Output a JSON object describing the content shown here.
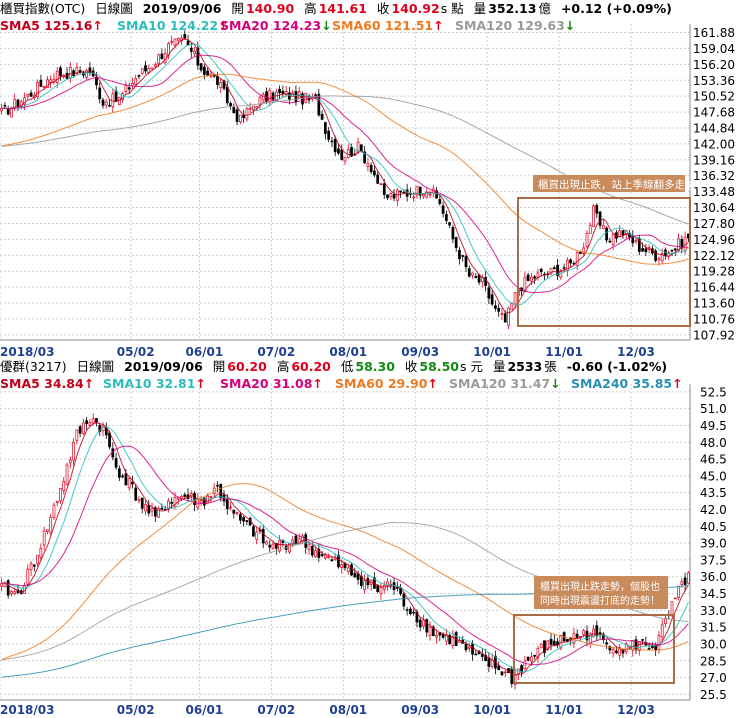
{
  "top": {
    "header": {
      "name": "櫃買指數(OTC)",
      "period": "日線圖",
      "date": "2019/09/06",
      "open_label": "開",
      "open": "140.90",
      "high_label": "高",
      "high": "141.61",
      "close_label": "收",
      "close": "140.92",
      "unit": "s 點",
      "volume_label": "量",
      "volume": "352.13",
      "volume_unit": "億",
      "change": "+0.12 (+0.09%)"
    },
    "sma": [
      {
        "label": "SMA5",
        "value": "125.16",
        "dir": "up",
        "color": "#c0001a"
      },
      {
        "label": "SMA10",
        "value": "124.22",
        "dir": "up",
        "color": "#2bbdbd"
      },
      {
        "label": "SMA20",
        "value": "124.23",
        "dir": "down",
        "color": "#d4007a"
      },
      {
        "label": "SMA60",
        "value": "121.51",
        "dir": "up",
        "color": "#ee7a1f"
      },
      {
        "label": "SMA120",
        "value": "129.63",
        "dir": "down",
        "color": "#9a9a9a"
      }
    ],
    "annotation": "櫃買出現止跌，站上季線翻多走勢！"
  },
  "bottom": {
    "header": {
      "name": "優群(3217)",
      "period": "日線圖",
      "date": "2019/09/06",
      "open_label": "開",
      "open": "60.20",
      "high_label": "高",
      "high": "60.20",
      "low_label": "低",
      "low": "58.30",
      "close_label": "收",
      "close": "58.50",
      "unit": "s 元",
      "volume_label": "量",
      "volume": "2533",
      "volume_unit": "張",
      "change": "-0.60 (-1.02%)"
    },
    "sma": [
      {
        "label": "SMA5",
        "value": "34.84",
        "dir": "up",
        "color": "#c0001a"
      },
      {
        "label": "SMA10",
        "value": "32.81",
        "dir": "up",
        "color": "#2bbdbd"
      },
      {
        "label": "SMA20",
        "value": "31.08",
        "dir": "up",
        "color": "#d4007a"
      },
      {
        "label": "SMA60",
        "value": "29.90",
        "dir": "up",
        "color": "#ee7a1f"
      },
      {
        "label": "SMA120",
        "value": "31.47",
        "dir": "down",
        "color": "#9a9a9a"
      },
      {
        "label": "SMA240",
        "value": "35.85",
        "dir": "up",
        "color": "#2a8fb0"
      }
    ],
    "annotation_lines": [
      "櫃買出現止跌走勢，個股也",
      "同時出現震盪打底的走勢！"
    ]
  },
  "colors": {
    "up_candle": "#e0001b",
    "down_candle": "#000000",
    "annotation_box": "#a86d45",
    "annotation_fill": "#c98a5c",
    "grid": "#c8c8c8",
    "axis_date": "#1f3f8f"
  },
  "chart_data": [
    {
      "type": "candlestick",
      "title": "櫃買指數(OTC) 日線圖",
      "x_ticks": [
        "2018/03",
        "05/02",
        "06/01",
        "07/02",
        "08/01",
        "09/03",
        "10/01",
        "11/01",
        "12/03"
      ],
      "y_ticks": [
        "161.88",
        "159.04",
        "156.20",
        "153.36",
        "150.52",
        "147.68",
        "144.84",
        "142.00",
        "139.16",
        "136.32",
        "133.48",
        "130.64",
        "127.80",
        "124.96",
        "122.12",
        "119.28",
        "116.44",
        "113.60",
        "110.76",
        "107.92"
      ],
      "ylim": [
        107.0,
        163.4
      ],
      "anchors_close": [
        [
          0,
          147.5
        ],
        [
          8,
          150.6
        ],
        [
          16,
          154.4
        ],
        [
          22,
          154.9
        ],
        [
          27,
          155.0
        ],
        [
          31,
          149.6
        ],
        [
          36,
          150.0
        ],
        [
          41,
          153.8
        ],
        [
          46,
          156.2
        ],
        [
          51,
          159.4
        ],
        [
          56,
          160.4
        ],
        [
          61,
          155.6
        ],
        [
          66,
          153.2
        ],
        [
          70,
          148.6
        ],
        [
          73,
          146.2
        ],
        [
          78,
          149.6
        ],
        [
          84,
          150.9
        ],
        [
          90,
          150.4
        ],
        [
          96,
          149.6
        ],
        [
          100,
          143.4
        ],
        [
          104,
          139.9
        ],
        [
          109,
          141.3
        ],
        [
          113,
          138.0
        ],
        [
          117,
          132.5
        ],
        [
          121,
          132.9
        ],
        [
          125,
          133.4
        ],
        [
          130,
          134.2
        ],
        [
          134,
          131.6
        ],
        [
          138,
          125.1
        ],
        [
          143,
          118.5
        ],
        [
          147,
          117.2
        ],
        [
          151,
          112.3
        ],
        [
          154,
          110.2
        ],
        [
          158,
          116.4
        ],
        [
          163,
          118.4
        ],
        [
          168,
          119.1
        ],
        [
          174,
          120.5
        ],
        [
          178,
          124.2
        ],
        [
          181,
          129.9
        ],
        [
          185,
          125.2
        ],
        [
          190,
          126.3
        ],
        [
          195,
          123.6
        ],
        [
          200,
          122.2
        ],
        [
          205,
          123.1
        ],
        [
          210,
          125.4
        ]
      ],
      "n_bars": 211,
      "moving_averages": [
        {
          "name": "SMA5",
          "period": 5
        },
        {
          "name": "SMA10",
          "period": 10
        },
        {
          "name": "SMA20",
          "period": 20
        },
        {
          "name": "SMA60",
          "period": 60
        },
        {
          "name": "SMA120",
          "period": 120
        }
      ]
    },
    {
      "type": "candlestick",
      "title": "優群(3217) 日線圖",
      "x_ticks": [
        "2018/03",
        "05/02",
        "06/01",
        "07/02",
        "08/01",
        "09/03",
        "10/01",
        "11/01",
        "12/03"
      ],
      "y_ticks": [
        "52.5",
        "51.0",
        "49.5",
        "48.0",
        "46.5",
        "45.0",
        "43.5",
        "42.0",
        "40.5",
        "39.0",
        "37.5",
        "36.0",
        "34.5",
        "33.0",
        "31.5",
        "30.0",
        "28.5",
        "27.0",
        "25.5"
      ],
      "ylim": [
        25.0,
        53.2
      ],
      "anchors_close": [
        [
          0,
          35.0
        ],
        [
          5,
          34.4
        ],
        [
          10,
          37.4
        ],
        [
          15,
          41.2
        ],
        [
          19,
          44.8
        ],
        [
          23,
          48.6
        ],
        [
          27,
          50.2
        ],
        [
          31,
          49.2
        ],
        [
          35,
          45.8
        ],
        [
          39,
          44.3
        ],
        [
          43,
          42.4
        ],
        [
          47,
          41.2
        ],
        [
          51,
          42.8
        ],
        [
          56,
          43.2
        ],
        [
          61,
          42.6
        ],
        [
          66,
          43.9
        ],
        [
          70,
          41.8
        ],
        [
          74,
          40.7
        ],
        [
          78,
          39.8
        ],
        [
          82,
          38.6
        ],
        [
          86,
          38.9
        ],
        [
          91,
          39.4
        ],
        [
          96,
          38.2
        ],
        [
          101,
          37.4
        ],
        [
          106,
          36.4
        ],
        [
          110,
          35.8
        ],
        [
          115,
          34.8
        ],
        [
          119,
          35.4
        ],
        [
          123,
          33.7
        ],
        [
          128,
          32.1
        ],
        [
          133,
          30.8
        ],
        [
          137,
          30.5
        ],
        [
          141,
          29.8
        ],
        [
          145,
          28.7
        ],
        [
          149,
          28.2
        ],
        [
          153,
          27.6
        ],
        [
          156,
          26.9
        ],
        [
          160,
          28.3
        ],
        [
          165,
          29.5
        ],
        [
          170,
          30.2
        ],
        [
          175,
          30.6
        ],
        [
          180,
          31.0
        ],
        [
          185,
          30.1
        ],
        [
          190,
          29.6
        ],
        [
          195,
          30.0
        ],
        [
          200,
          29.8
        ],
        [
          204,
          32.6
        ],
        [
          208,
          35.2
        ],
        [
          210,
          36.2
        ]
      ],
      "n_bars": 211,
      "moving_averages": [
        {
          "name": "SMA5",
          "period": 5
        },
        {
          "name": "SMA10",
          "period": 10
        },
        {
          "name": "SMA20",
          "period": 20
        },
        {
          "name": "SMA60",
          "period": 60
        },
        {
          "name": "SMA120",
          "period": 120
        },
        {
          "name": "SMA240",
          "period": 240
        }
      ]
    }
  ]
}
